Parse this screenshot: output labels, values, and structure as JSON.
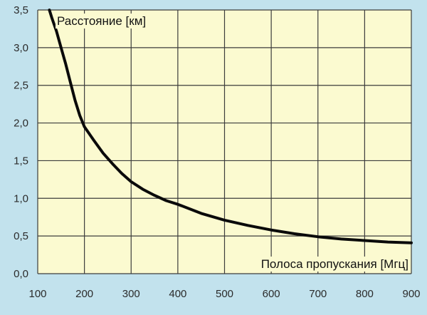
{
  "colors": {
    "page_background": "#c2e2ed",
    "plot_background": "#fbfad0",
    "grid": "#3c3c3c",
    "curve": "#0a0a0a",
    "text": "#2b2b2b"
  },
  "chart_data": {
    "type": "line",
    "title": "",
    "ylabel": "Расстояние [км]",
    "xlabel": "Полоса пропускания [Мгц]",
    "xlim": [
      100,
      900
    ],
    "ylim": [
      0,
      3.5
    ],
    "grid": true,
    "x_ticks": [
      100,
      200,
      300,
      400,
      500,
      600,
      700,
      800,
      900
    ],
    "x_tick_labels": [
      "100",
      "200",
      "300",
      "400",
      "500",
      "600",
      "700",
      "800",
      "900"
    ],
    "y_ticks": [
      0,
      0.5,
      1.0,
      1.5,
      2.0,
      2.5,
      3.0,
      3.5
    ],
    "y_tick_labels": [
      "0,0",
      "0,5",
      "1,0",
      "1,5",
      "2,0",
      "2,5",
      "3,0",
      "3,5"
    ],
    "series": [
      {
        "x": [
          125,
          130,
          140,
          150,
          160,
          170,
          180,
          190,
          200,
          220,
          240,
          260,
          280,
          300,
          325,
          350,
          375,
          400,
          450,
          500,
          550,
          600,
          650,
          700,
          750,
          800,
          850,
          900
        ],
        "y": [
          3.5,
          3.4,
          3.22,
          3.0,
          2.78,
          2.54,
          2.3,
          2.1,
          1.95,
          1.77,
          1.6,
          1.46,
          1.33,
          1.22,
          1.12,
          1.04,
          0.97,
          0.92,
          0.8,
          0.71,
          0.64,
          0.58,
          0.53,
          0.49,
          0.46,
          0.44,
          0.42,
          0.41
        ]
      }
    ]
  }
}
